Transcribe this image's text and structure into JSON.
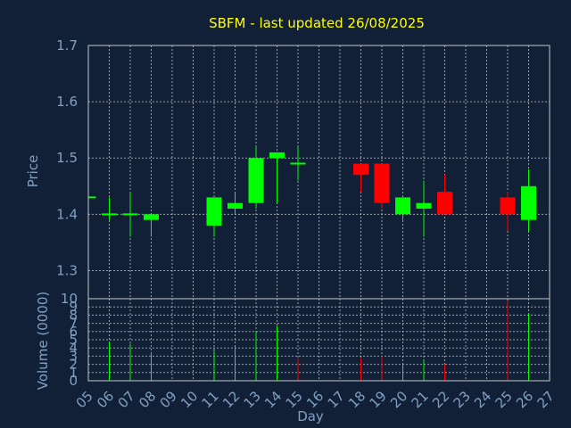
{
  "chart_data": {
    "type": "candlestick",
    "title": "SBFM - last updated 26/08/2025",
    "xlabel": "Day",
    "colors": {
      "up": "#00ff00",
      "down": "#ff0000",
      "title": "#ffff00",
      "axis_text": "#7fa1c4",
      "background": "#112036",
      "grid": "#c8c8c8"
    },
    "x_ticks": [
      "05",
      "06",
      "07",
      "08",
      "09",
      "10",
      "11",
      "12",
      "13",
      "14",
      "15",
      "16",
      "17",
      "18",
      "19",
      "20",
      "21",
      "22",
      "23",
      "24",
      "25",
      "26",
      "27"
    ],
    "price": {
      "ylabel": "Price",
      "ylim": [
        1.25,
        1.7
      ],
      "ticks": [
        "1.3",
        "1.4",
        "1.5",
        "1.6",
        "1.7"
      ],
      "candles": [
        {
          "day": 5,
          "open": 1.43,
          "close": 1.43,
          "high": 1.43,
          "low": 1.43
        },
        {
          "day": 6,
          "open": 1.4,
          "close": 1.4,
          "high": 1.43,
          "low": 1.39
        },
        {
          "day": 7,
          "open": 1.4,
          "close": 1.4,
          "high": 1.44,
          "low": 1.36
        },
        {
          "day": 8,
          "open": 1.39,
          "close": 1.4,
          "high": 1.4,
          "low": 1.36
        },
        {
          "day": 11,
          "open": 1.38,
          "close": 1.43,
          "high": 1.43,
          "low": 1.36
        },
        {
          "day": 12,
          "open": 1.41,
          "close": 1.42,
          "high": 1.44,
          "low": 1.4
        },
        {
          "day": 13,
          "open": 1.42,
          "close": 1.5,
          "high": 1.52,
          "low": 1.41
        },
        {
          "day": 14,
          "open": 1.5,
          "close": 1.51,
          "high": 1.51,
          "low": 1.42
        },
        {
          "day": 15,
          "open": 1.49,
          "close": 1.49,
          "high": 1.52,
          "low": 1.46
        },
        {
          "day": 18,
          "open": 1.49,
          "close": 1.47,
          "high": 1.49,
          "low": 1.44
        },
        {
          "day": 19,
          "open": 1.49,
          "close": 1.42,
          "high": 1.49,
          "low": 1.41
        },
        {
          "day": 20,
          "open": 1.4,
          "close": 1.43,
          "high": 1.43,
          "low": 1.39
        },
        {
          "day": 21,
          "open": 1.41,
          "close": 1.42,
          "high": 1.46,
          "low": 1.36
        },
        {
          "day": 22,
          "open": 1.44,
          "close": 1.4,
          "high": 1.47,
          "low": 1.4
        },
        {
          "day": 25,
          "open": 1.43,
          "close": 1.4,
          "high": 1.44,
          "low": 1.37
        },
        {
          "day": 26,
          "open": 1.39,
          "close": 1.45,
          "high": 1.48,
          "low": 1.37
        }
      ]
    },
    "volume": {
      "ylabel": "Volume (0000)",
      "ylim": [
        0,
        10
      ],
      "ticks": [
        "0",
        "1",
        "2",
        "3",
        "4",
        "5",
        "6",
        "7",
        "8",
        "9",
        "10"
      ],
      "bars": [
        {
          "day": 6,
          "value": 4.8,
          "dir": "up"
        },
        {
          "day": 7,
          "value": 4.5,
          "dir": "up"
        },
        {
          "day": 8,
          "value": 3.5,
          "dir": "up"
        },
        {
          "day": 11,
          "value": 3.7,
          "dir": "up"
        },
        {
          "day": 12,
          "value": 4.3,
          "dir": "up"
        },
        {
          "day": 13,
          "value": 6.0,
          "dir": "up"
        },
        {
          "day": 14,
          "value": 6.7,
          "dir": "up"
        },
        {
          "day": 15,
          "value": 2.7,
          "dir": "down"
        },
        {
          "day": 18,
          "value": 2.7,
          "dir": "down"
        },
        {
          "day": 19,
          "value": 3.0,
          "dir": "down"
        },
        {
          "day": 20,
          "value": 2.0,
          "dir": "up"
        },
        {
          "day": 21,
          "value": 2.5,
          "dir": "up"
        },
        {
          "day": 22,
          "value": 2.0,
          "dir": "down"
        },
        {
          "day": 25,
          "value": 9.8,
          "dir": "down"
        },
        {
          "day": 26,
          "value": 8.2,
          "dir": "up"
        }
      ]
    }
  }
}
